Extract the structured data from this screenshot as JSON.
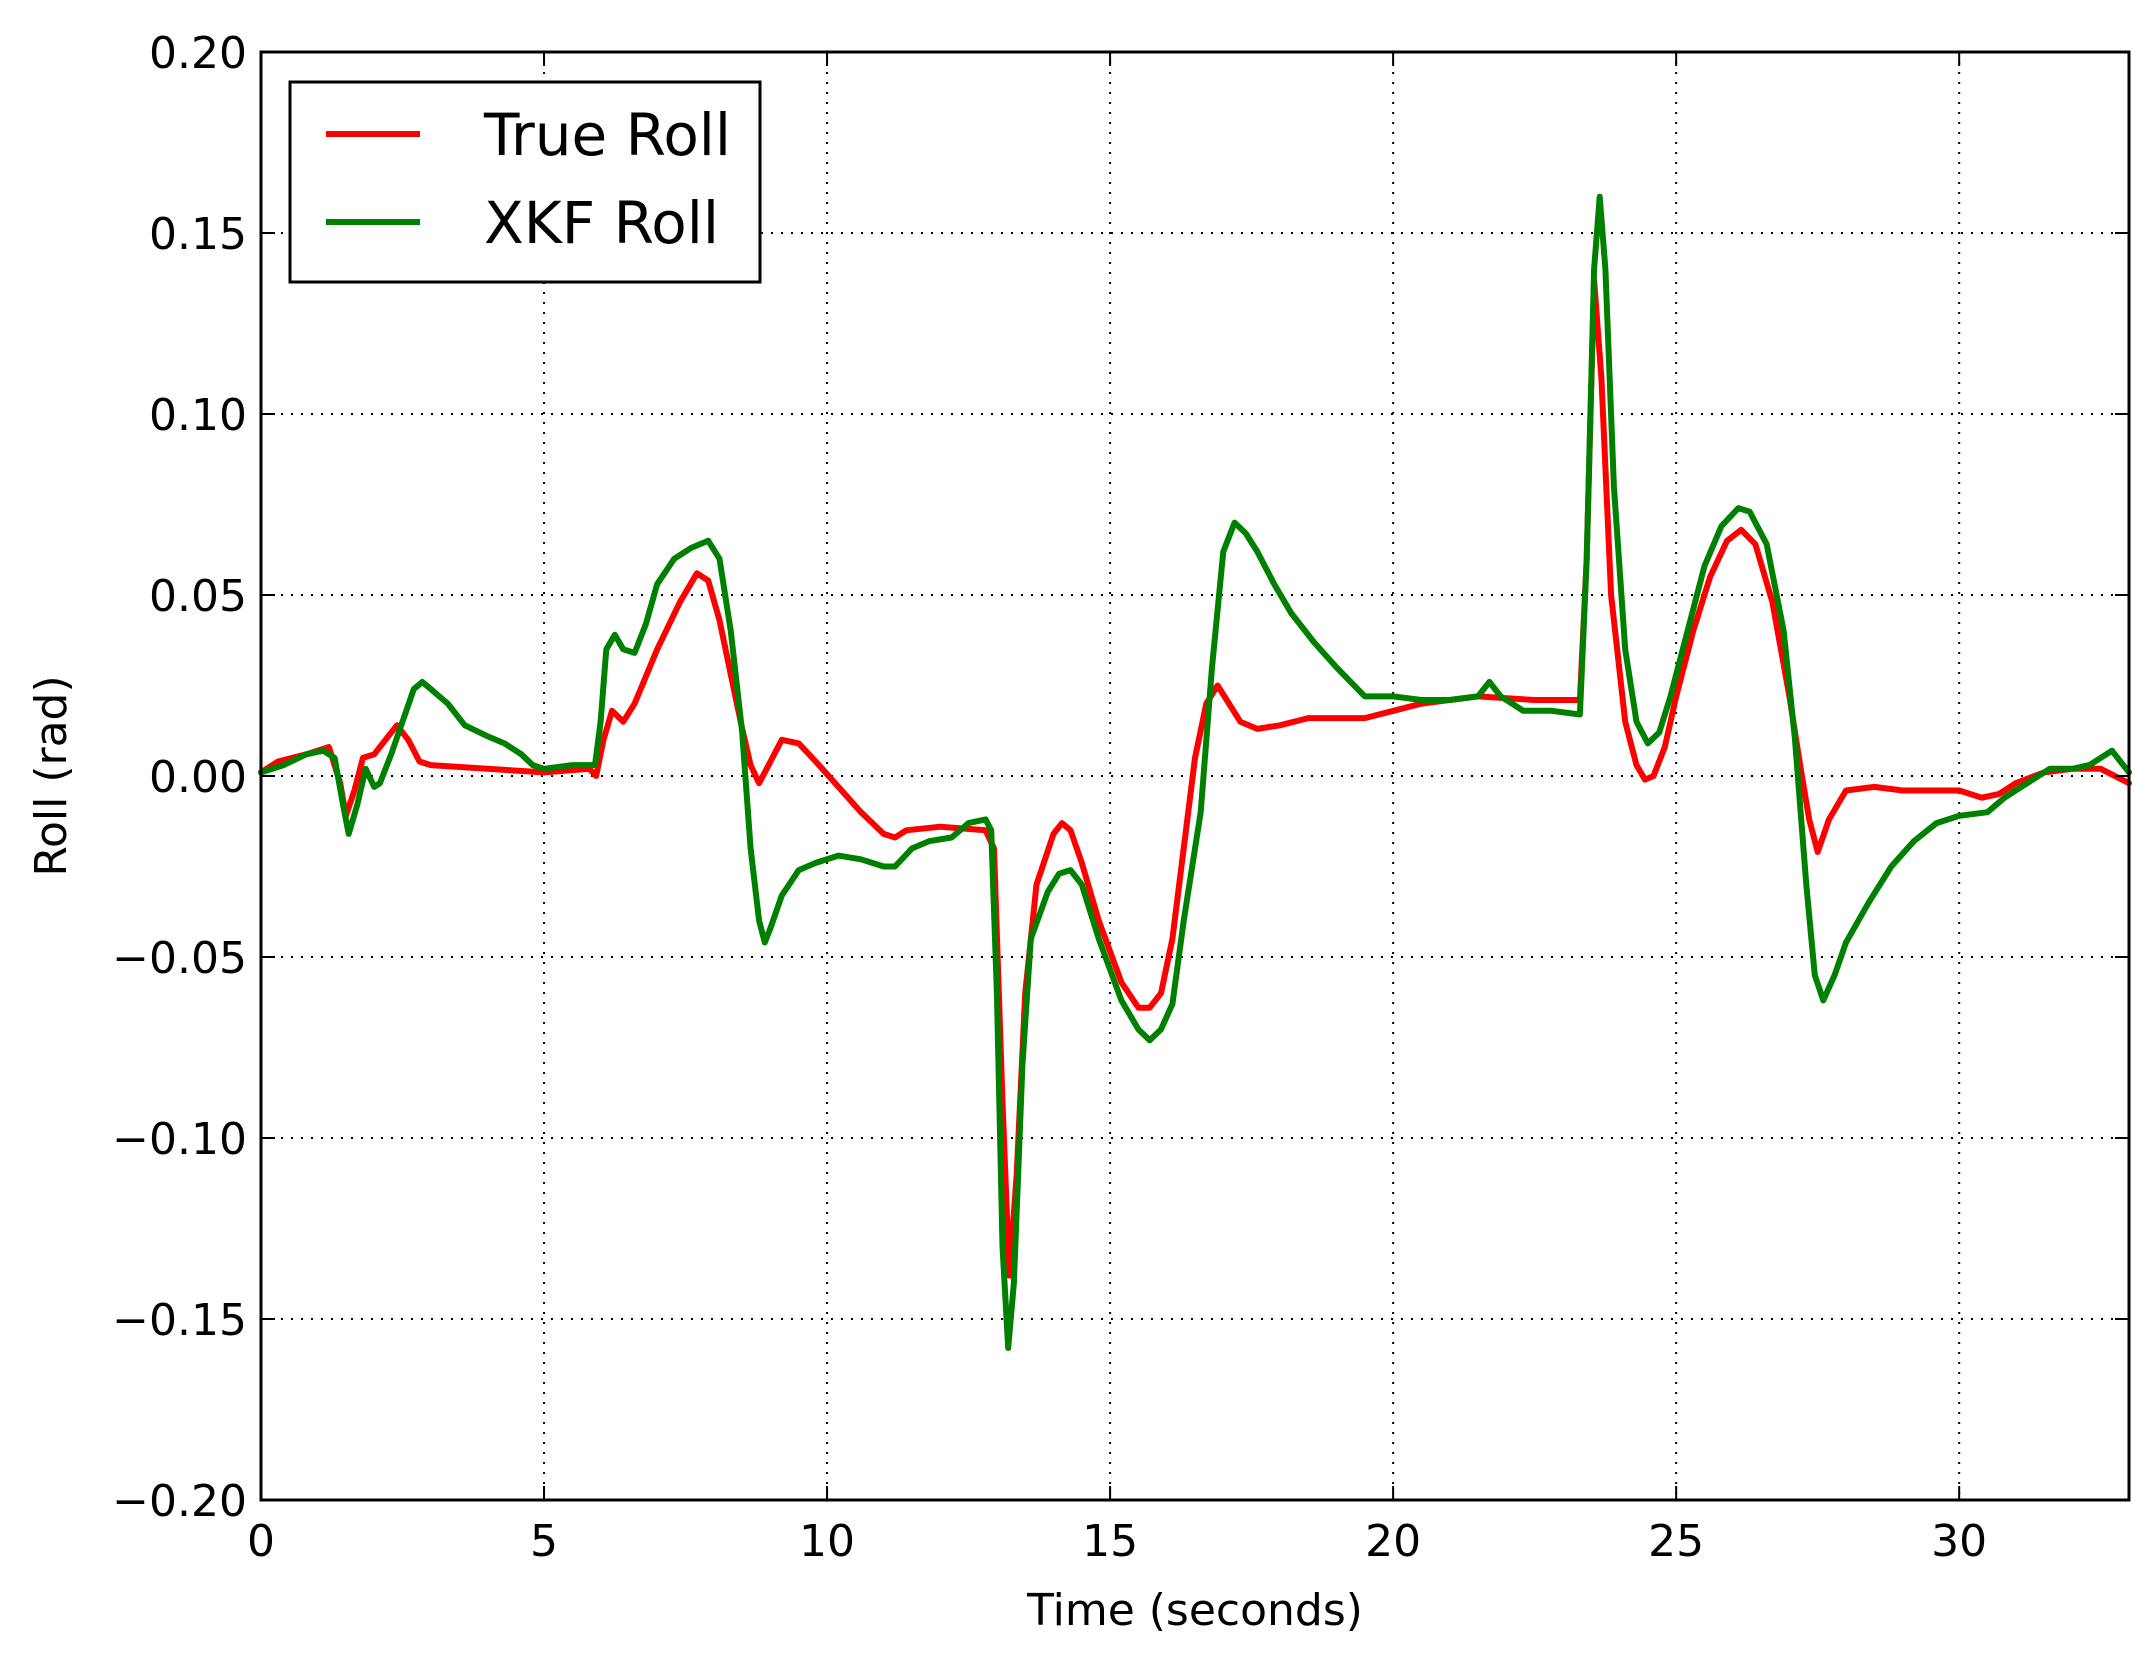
{
  "chart_data": {
    "type": "line",
    "xlabel": "Time (seconds)",
    "ylabel": "Roll (rad)",
    "xlim": [
      0,
      33
    ],
    "ylim": [
      -0.2,
      0.2
    ],
    "xticks": [
      0,
      5,
      10,
      15,
      20,
      25,
      30
    ],
    "xtick_labels": [
      "0",
      "5",
      "10",
      "15",
      "20",
      "25",
      "30"
    ],
    "yticks": [
      -0.2,
      -0.15,
      -0.1,
      -0.05,
      0.0,
      0.05,
      0.1,
      0.15,
      0.2
    ],
    "ytick_labels": [
      "−0.20",
      "−0.15",
      "−0.10",
      "−0.05",
      "0.00",
      "0.05",
      "0.10",
      "0.15",
      "0.20"
    ],
    "grid": true,
    "legend_position": "top-left",
    "series": [
      {
        "name": "True Roll",
        "color": "#ff0000",
        "points": [
          [
            0,
            0.001
          ],
          [
            0.3,
            0.004
          ],
          [
            0.8,
            0.006
          ],
          [
            1.2,
            0.008
          ],
          [
            1.4,
            -0.002
          ],
          [
            1.5,
            -0.011
          ],
          [
            1.65,
            -0.004
          ],
          [
            1.8,
            0.005
          ],
          [
            2.0,
            0.006
          ],
          [
            2.2,
            0.01
          ],
          [
            2.4,
            0.014
          ],
          [
            2.6,
            0.01
          ],
          [
            2.8,
            0.004
          ],
          [
            3.0,
            0.003
          ],
          [
            4.0,
            0.002
          ],
          [
            5.0,
            0.001
          ],
          [
            5.8,
            0.002
          ],
          [
            5.92,
            0.0
          ],
          [
            6.05,
            0.01
          ],
          [
            6.2,
            0.018
          ],
          [
            6.4,
            0.015
          ],
          [
            6.6,
            0.02
          ],
          [
            7.0,
            0.035
          ],
          [
            7.4,
            0.048
          ],
          [
            7.7,
            0.056
          ],
          [
            7.9,
            0.054
          ],
          [
            8.1,
            0.043
          ],
          [
            8.3,
            0.028
          ],
          [
            8.5,
            0.013
          ],
          [
            8.65,
            0.003
          ],
          [
            8.8,
            -0.002
          ],
          [
            9.0,
            0.004
          ],
          [
            9.2,
            0.01
          ],
          [
            9.5,
            0.009
          ],
          [
            9.8,
            0.004
          ],
          [
            10.2,
            -0.003
          ],
          [
            10.6,
            -0.01
          ],
          [
            11.0,
            -0.016
          ],
          [
            11.2,
            -0.017
          ],
          [
            11.4,
            -0.015
          ],
          [
            12.0,
            -0.014
          ],
          [
            12.8,
            -0.015
          ],
          [
            12.95,
            -0.02
          ],
          [
            13.1,
            -0.09
          ],
          [
            13.22,
            -0.138
          ],
          [
            13.35,
            -0.11
          ],
          [
            13.5,
            -0.06
          ],
          [
            13.7,
            -0.03
          ],
          [
            14.0,
            -0.016
          ],
          [
            14.15,
            -0.013
          ],
          [
            14.3,
            -0.015
          ],
          [
            14.5,
            -0.024
          ],
          [
            14.8,
            -0.04
          ],
          [
            15.2,
            -0.057
          ],
          [
            15.5,
            -0.064
          ],
          [
            15.7,
            -0.064
          ],
          [
            15.9,
            -0.06
          ],
          [
            16.1,
            -0.045
          ],
          [
            16.3,
            -0.02
          ],
          [
            16.5,
            0.005
          ],
          [
            16.7,
            0.02
          ],
          [
            16.9,
            0.025
          ],
          [
            17.1,
            0.02
          ],
          [
            17.3,
            0.015
          ],
          [
            17.6,
            0.013
          ],
          [
            18.0,
            0.014
          ],
          [
            18.5,
            0.016
          ],
          [
            19.5,
            0.016
          ],
          [
            20.5,
            0.02
          ],
          [
            21.5,
            0.022
          ],
          [
            22.5,
            0.021
          ],
          [
            23.3,
            0.021
          ],
          [
            23.42,
            0.06
          ],
          [
            23.55,
            0.137
          ],
          [
            23.68,
            0.11
          ],
          [
            23.85,
            0.05
          ],
          [
            24.1,
            0.015
          ],
          [
            24.3,
            0.003
          ],
          [
            24.45,
            -0.001
          ],
          [
            24.6,
            0.0
          ],
          [
            24.8,
            0.008
          ],
          [
            25.0,
            0.022
          ],
          [
            25.3,
            0.04
          ],
          [
            25.6,
            0.055
          ],
          [
            25.9,
            0.065
          ],
          [
            26.15,
            0.068
          ],
          [
            26.4,
            0.064
          ],
          [
            26.7,
            0.048
          ],
          [
            27.0,
            0.022
          ],
          [
            27.2,
            0.002
          ],
          [
            27.35,
            -0.012
          ],
          [
            27.5,
            -0.021
          ],
          [
            27.7,
            -0.012
          ],
          [
            28.0,
            -0.004
          ],
          [
            28.5,
            -0.003
          ],
          [
            29.0,
            -0.004
          ],
          [
            29.5,
            -0.004
          ],
          [
            30.0,
            -0.004
          ],
          [
            30.4,
            -0.006
          ],
          [
            30.7,
            -0.005
          ],
          [
            31.0,
            -0.002
          ],
          [
            31.5,
            0.001
          ],
          [
            32.0,
            0.002
          ],
          [
            32.5,
            0.002
          ],
          [
            33.0,
            -0.002
          ]
        ]
      },
      {
        "name": "XKF Roll",
        "color": "#008000",
        "points": [
          [
            0,
            0.001
          ],
          [
            0.4,
            0.003
          ],
          [
            0.8,
            0.006
          ],
          [
            1.1,
            0.007
          ],
          [
            1.3,
            0.005
          ],
          [
            1.45,
            -0.008
          ],
          [
            1.55,
            -0.016
          ],
          [
            1.7,
            -0.008
          ],
          [
            1.85,
            0.002
          ],
          [
            2.0,
            -0.003
          ],
          [
            2.1,
            -0.002
          ],
          [
            2.3,
            0.006
          ],
          [
            2.5,
            0.015
          ],
          [
            2.7,
            0.024
          ],
          [
            2.85,
            0.026
          ],
          [
            3.0,
            0.024
          ],
          [
            3.3,
            0.02
          ],
          [
            3.6,
            0.014
          ],
          [
            4.0,
            0.011
          ],
          [
            4.3,
            0.009
          ],
          [
            4.6,
            0.006
          ],
          [
            4.8,
            0.003
          ],
          [
            5.0,
            0.002
          ],
          [
            5.5,
            0.003
          ],
          [
            5.9,
            0.003
          ],
          [
            6.0,
            0.015
          ],
          [
            6.1,
            0.035
          ],
          [
            6.25,
            0.039
          ],
          [
            6.4,
            0.035
          ],
          [
            6.6,
            0.034
          ],
          [
            6.8,
            0.042
          ],
          [
            7.0,
            0.053
          ],
          [
            7.3,
            0.06
          ],
          [
            7.6,
            0.063
          ],
          [
            7.9,
            0.065
          ],
          [
            8.1,
            0.06
          ],
          [
            8.3,
            0.04
          ],
          [
            8.5,
            0.012
          ],
          [
            8.65,
            -0.02
          ],
          [
            8.8,
            -0.04
          ],
          [
            8.9,
            -0.046
          ],
          [
            9.0,
            -0.042
          ],
          [
            9.2,
            -0.033
          ],
          [
            9.5,
            -0.026
          ],
          [
            9.8,
            -0.024
          ],
          [
            10.2,
            -0.022
          ],
          [
            10.6,
            -0.023
          ],
          [
            11.0,
            -0.025
          ],
          [
            11.2,
            -0.025
          ],
          [
            11.5,
            -0.02
          ],
          [
            11.8,
            -0.018
          ],
          [
            12.2,
            -0.017
          ],
          [
            12.5,
            -0.013
          ],
          [
            12.8,
            -0.012
          ],
          [
            12.9,
            -0.015
          ],
          [
            13.0,
            -0.06
          ],
          [
            13.1,
            -0.13
          ],
          [
            13.2,
            -0.158
          ],
          [
            13.3,
            -0.14
          ],
          [
            13.45,
            -0.08
          ],
          [
            13.6,
            -0.045
          ],
          [
            13.9,
            -0.032
          ],
          [
            14.1,
            -0.027
          ],
          [
            14.3,
            -0.026
          ],
          [
            14.5,
            -0.03
          ],
          [
            14.8,
            -0.045
          ],
          [
            15.2,
            -0.062
          ],
          [
            15.5,
            -0.07
          ],
          [
            15.7,
            -0.073
          ],
          [
            15.9,
            -0.07
          ],
          [
            16.1,
            -0.063
          ],
          [
            16.3,
            -0.04
          ],
          [
            16.6,
            -0.01
          ],
          [
            16.8,
            0.03
          ],
          [
            17.0,
            0.062
          ],
          [
            17.2,
            0.07
          ],
          [
            17.4,
            0.067
          ],
          [
            17.6,
            0.062
          ],
          [
            17.9,
            0.053
          ],
          [
            18.2,
            0.045
          ],
          [
            18.6,
            0.037
          ],
          [
            19.0,
            0.03
          ],
          [
            19.5,
            0.022
          ],
          [
            20.0,
            0.022
          ],
          [
            20.5,
            0.021
          ],
          [
            21.0,
            0.021
          ],
          [
            21.5,
            0.022
          ],
          [
            21.7,
            0.026
          ],
          [
            21.9,
            0.022
          ],
          [
            22.3,
            0.018
          ],
          [
            22.8,
            0.018
          ],
          [
            23.3,
            0.017
          ],
          [
            23.42,
            0.06
          ],
          [
            23.55,
            0.14
          ],
          [
            23.65,
            0.16
          ],
          [
            23.75,
            0.14
          ],
          [
            23.9,
            0.08
          ],
          [
            24.1,
            0.035
          ],
          [
            24.3,
            0.015
          ],
          [
            24.5,
            0.009
          ],
          [
            24.7,
            0.012
          ],
          [
            24.9,
            0.022
          ],
          [
            25.2,
            0.04
          ],
          [
            25.5,
            0.058
          ],
          [
            25.8,
            0.069
          ],
          [
            26.1,
            0.074
          ],
          [
            26.3,
            0.073
          ],
          [
            26.6,
            0.064
          ],
          [
            26.9,
            0.04
          ],
          [
            27.1,
            0.01
          ],
          [
            27.3,
            -0.03
          ],
          [
            27.45,
            -0.055
          ],
          [
            27.6,
            -0.062
          ],
          [
            27.8,
            -0.055
          ],
          [
            28.0,
            -0.046
          ],
          [
            28.4,
            -0.035
          ],
          [
            28.8,
            -0.025
          ],
          [
            29.2,
            -0.018
          ],
          [
            29.6,
            -0.013
          ],
          [
            30.0,
            -0.011
          ],
          [
            30.5,
            -0.01
          ],
          [
            30.8,
            -0.006
          ],
          [
            31.2,
            -0.002
          ],
          [
            31.6,
            0.002
          ],
          [
            32.0,
            0.002
          ],
          [
            32.3,
            0.003
          ],
          [
            32.5,
            0.005
          ],
          [
            32.7,
            0.007
          ],
          [
            33.0,
            0.001
          ]
        ]
      }
    ]
  }
}
